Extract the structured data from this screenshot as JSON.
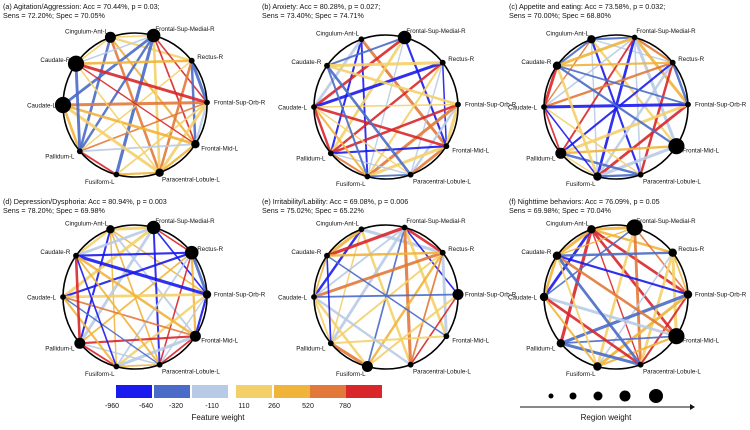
{
  "colors": {
    "circle": "#000000",
    "node": "#000000",
    "negative_strong": "#1a1aee",
    "negative_mid": "#4a6cc8",
    "negative_weak": "#b8cbe6",
    "positive_weak": "#f4d06a",
    "positive_mid": "#f0b43a",
    "positive_orange": "#e2793a",
    "positive_strong": "#d8262a"
  },
  "regions": [
    "Cingulum-Ant-L",
    "Frontal-Sup-Medial-R",
    "Rectus-R",
    "Frontal-Sup-Orb-R",
    "Frontal-Mid-L",
    "Paracentral-Lobule-L",
    "Fusiform-L",
    "Pallidum-L",
    "Caudate-L",
    "Caudate-R"
  ],
  "panels": [
    {
      "line1": "(a) Agitation/Aggression: Acc = 70.44%, p = 0.03;",
      "line2": "Sens = 72.20%; Spec = 70.05%",
      "node_weights": [
        3,
        4,
        1,
        1,
        2,
        2,
        1,
        1,
        5,
        5
      ]
    },
    {
      "line1": "(b) Anxiety: Acc = 80.28%, p = 0.027;",
      "line2": "Sens = 73.40%; Spec = 74.71%",
      "node_weights": [
        1,
        4,
        1,
        1,
        1,
        1,
        1,
        1,
        1,
        1
      ]
    },
    {
      "line1": "(c) Appetite and eating: Acc = 73.58%, p = 0.032;",
      "line2": "Sens = 70.00%; Spec = 68.80%",
      "node_weights": [
        2,
        1,
        1,
        1,
        5,
        1,
        2,
        3,
        1,
        2
      ]
    },
    {
      "line1": "(d) Depression/Dysphoria: Acc = 80.94%, p = 0.003",
      "line2": "Sens = 78.20%; Spec = 69.98%",
      "node_weights": [
        2,
        4,
        4,
        2,
        3,
        1,
        1,
        3,
        1,
        1
      ]
    },
    {
      "line1": "(e) Irritability/Lability: Acc = 69.08%, p = 0.006",
      "line2": "Sens = 75.02%; Spec = 65.22%",
      "node_weights": [
        1,
        1,
        1,
        3,
        1,
        1,
        3,
        1,
        1,
        1
      ]
    },
    {
      "line1": "(f) Nighttime behaviors: Acc = 76.09%, p = 0.05",
      "line2": "Sens = 69.98%; Spec = 70.04%",
      "node_weights": [
        2,
        5,
        2,
        2,
        5,
        1,
        2,
        2,
        2,
        2
      ]
    }
  ],
  "legend": {
    "feature_weight_title": "Feature weight",
    "feature_weight_ticks": [
      "-960",
      "-640",
      "-320",
      "-110",
      "110",
      "260",
      "520",
      "780"
    ],
    "region_weight_title": "Region weight"
  }
}
